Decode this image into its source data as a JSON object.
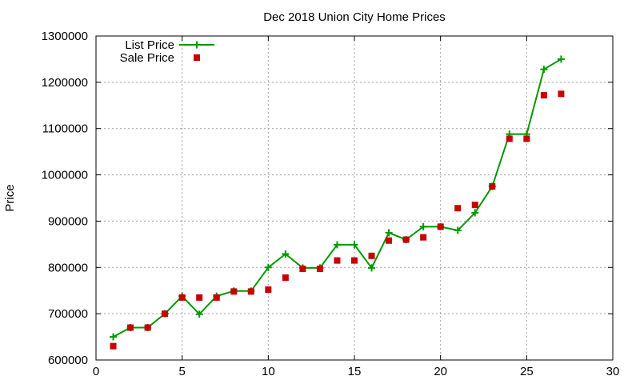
{
  "chart_data": {
    "type": "line",
    "title": "Dec 2018 Union City Home Prices",
    "xlabel": "",
    "ylabel": "Price",
    "xlim": [
      0,
      30
    ],
    "ylim": [
      600000,
      1300000
    ],
    "xticks": [
      0,
      5,
      10,
      15,
      20,
      25,
      30
    ],
    "yticks": [
      600000,
      700000,
      800000,
      900000,
      1000000,
      1100000,
      1200000,
      1300000
    ],
    "grid": true,
    "legend_position": "top-left",
    "series": [
      {
        "name": "List Price",
        "style": "line-plus",
        "color": "#009900",
        "x": [
          1,
          2,
          3,
          4,
          5,
          6,
          7,
          8,
          9,
          10,
          11,
          12,
          13,
          14,
          15,
          16,
          17,
          18,
          19,
          20,
          21,
          22,
          23,
          24,
          25,
          26,
          27
        ],
        "y": [
          650000,
          670000,
          670000,
          700000,
          738000,
          699000,
          738000,
          749000,
          749000,
          800000,
          829000,
          799000,
          799000,
          849000,
          849000,
          799000,
          875000,
          860000,
          888000,
          888000,
          880000,
          918000,
          975000,
          1088000,
          1088000,
          1228000,
          1250000
        ]
      },
      {
        "name": "Sale Price",
        "style": "square",
        "color": "#c80000",
        "x": [
          1,
          2,
          3,
          4,
          5,
          6,
          7,
          8,
          9,
          10,
          11,
          12,
          13,
          14,
          15,
          16,
          17,
          18,
          19,
          20,
          21,
          22,
          23,
          24,
          25,
          26,
          27
        ],
        "y": [
          630000,
          670000,
          670000,
          700000,
          735000,
          735000,
          735000,
          748000,
          748000,
          752000,
          778000,
          797000,
          797000,
          815000,
          815000,
          825000,
          858000,
          860000,
          865000,
          888000,
          928000,
          935000,
          975000,
          1078000,
          1078000,
          1172000,
          1175000
        ]
      }
    ]
  }
}
